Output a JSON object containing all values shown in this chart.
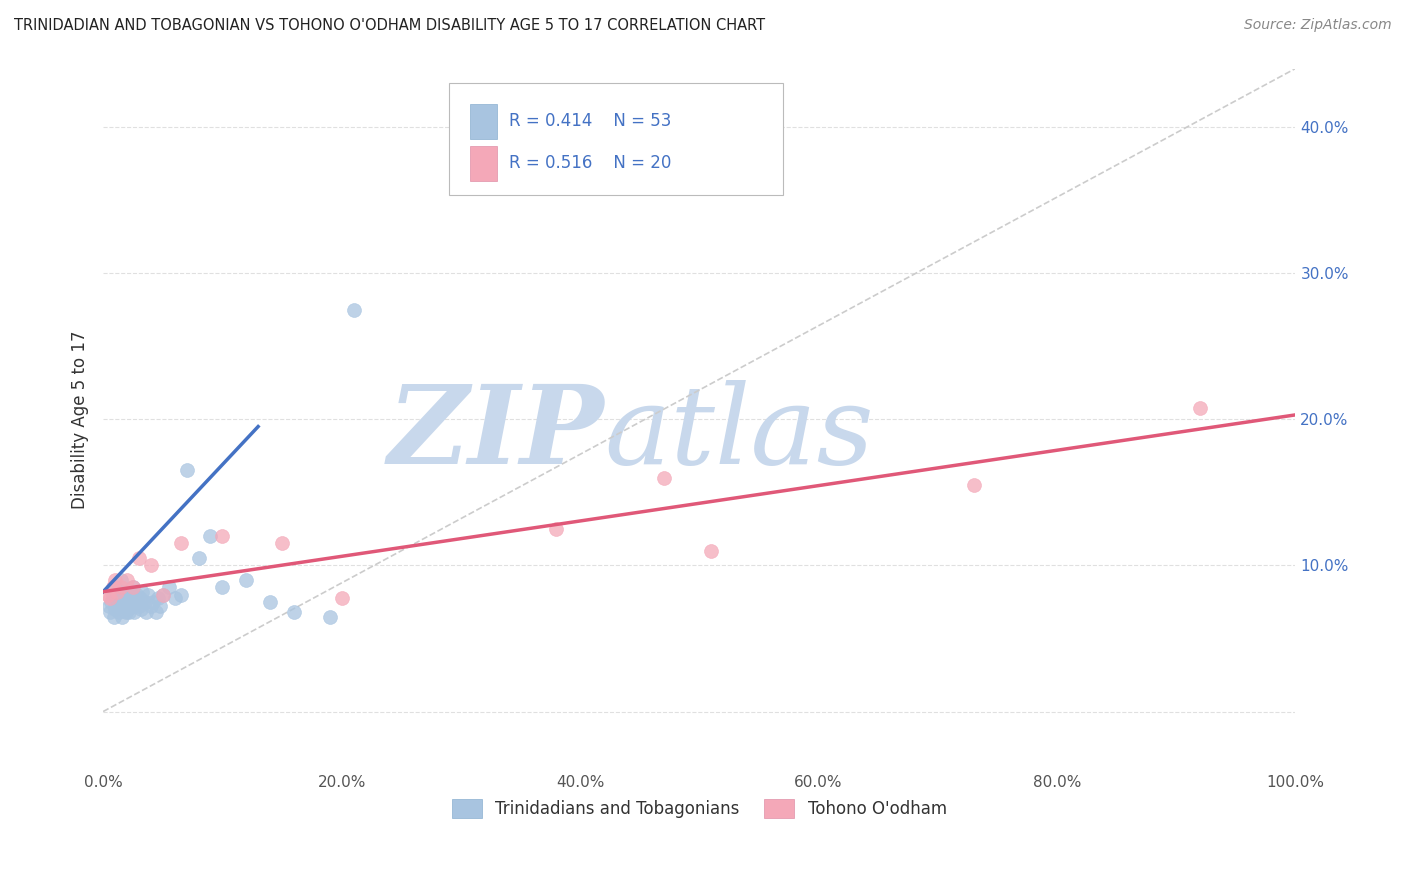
{
  "title": "TRINIDADIAN AND TOBAGONIAN VS TOHONO O'ODHAM DISABILITY AGE 5 TO 17 CORRELATION CHART",
  "source": "Source: ZipAtlas.com",
  "ylabel": "Disability Age 5 to 17",
  "legend_label_1": "Trinidadians and Tobagonians",
  "legend_label_2": "Tohono O'odham",
  "R1": 0.414,
  "N1": 53,
  "R2": 0.516,
  "N2": 20,
  "color1": "#a8c4e0",
  "color2": "#f4a8b8",
  "line_color1": "#4472c4",
  "line_color2": "#e05878",
  "watermark_zip": "ZIP",
  "watermark_atlas": "atlas",
  "watermark_color_zip": "#c8d8ec",
  "watermark_color_atlas": "#c8d8ec",
  "xlim": [
    0.0,
    1.0
  ],
  "ylim": [
    -0.04,
    0.44
  ],
  "xticks": [
    0.0,
    0.2,
    0.4,
    0.6,
    0.8,
    1.0
  ],
  "yticks": [
    0.0,
    0.1,
    0.2,
    0.3,
    0.4
  ],
  "xtick_labels": [
    "0.0%",
    "20.0%",
    "40.0%",
    "60.0%",
    "80.0%",
    "100.0%"
  ],
  "ytick_labels": [
    "",
    "10.0%",
    "20.0%",
    "30.0%",
    "40.0%"
  ],
  "blue_scatter_x": [
    0.005,
    0.006,
    0.007,
    0.008,
    0.009,
    0.01,
    0.01,
    0.011,
    0.012,
    0.013,
    0.014,
    0.015,
    0.015,
    0.016,
    0.017,
    0.018,
    0.019,
    0.02,
    0.02,
    0.021,
    0.022,
    0.023,
    0.024,
    0.025,
    0.025,
    0.026,
    0.027,
    0.028,
    0.03,
    0.031,
    0.032,
    0.033,
    0.035,
    0.036,
    0.038,
    0.04,
    0.042,
    0.044,
    0.046,
    0.048,
    0.05,
    0.055,
    0.06,
    0.065,
    0.07,
    0.08,
    0.09,
    0.1,
    0.12,
    0.14,
    0.16,
    0.19,
    0.21
  ],
  "blue_scatter_y": [
    0.072,
    0.068,
    0.075,
    0.08,
    0.065,
    0.07,
    0.085,
    0.078,
    0.072,
    0.068,
    0.082,
    0.076,
    0.09,
    0.065,
    0.072,
    0.078,
    0.068,
    0.082,
    0.075,
    0.07,
    0.068,
    0.075,
    0.08,
    0.072,
    0.085,
    0.068,
    0.075,
    0.08,
    0.072,
    0.078,
    0.07,
    0.082,
    0.075,
    0.068,
    0.08,
    0.072,
    0.075,
    0.068,
    0.078,
    0.072,
    0.08,
    0.085,
    0.078,
    0.08,
    0.165,
    0.105,
    0.12,
    0.085,
    0.09,
    0.075,
    0.068,
    0.065,
    0.275
  ],
  "pink_scatter_x": [
    0.004,
    0.006,
    0.008,
    0.01,
    0.012,
    0.015,
    0.02,
    0.025,
    0.03,
    0.04,
    0.05,
    0.065,
    0.1,
    0.15,
    0.2,
    0.38,
    0.47,
    0.51,
    0.73,
    0.92
  ],
  "pink_scatter_y": [
    0.08,
    0.078,
    0.085,
    0.09,
    0.082,
    0.085,
    0.09,
    0.085,
    0.105,
    0.1,
    0.08,
    0.115,
    0.12,
    0.115,
    0.078,
    0.125,
    0.16,
    0.11,
    0.155,
    0.208
  ],
  "blue_line_x": [
    0.0,
    0.13
  ],
  "blue_line_y": [
    0.082,
    0.195
  ],
  "pink_line_x": [
    0.0,
    1.0
  ],
  "pink_line_y": [
    0.082,
    0.203
  ],
  "diag_line_x": [
    0.0,
    1.0
  ],
  "diag_line_y": [
    0.0,
    0.44
  ],
  "grid_color": "#e0e0e0",
  "title_fontsize": 10.5,
  "source_fontsize": 10,
  "tick_fontsize": 11,
  "ylabel_fontsize": 12
}
